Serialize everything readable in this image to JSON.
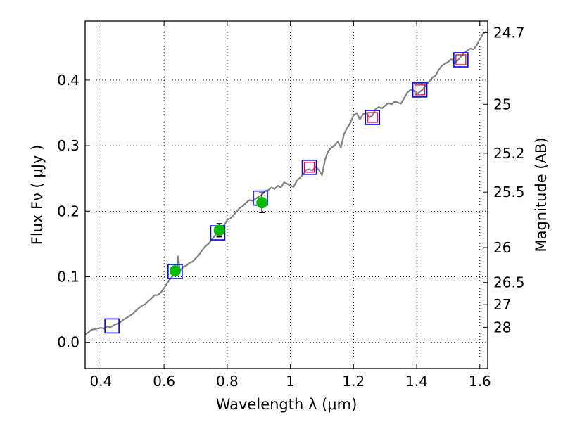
{
  "chart_data": {
    "type": "line",
    "xlabel": "Wavelength  λ (μm)",
    "ylabel": "Flux  Fν  ( μJy )",
    "y2label": "Magnitude (AB)",
    "xlim": [
      0.35,
      1.625
    ],
    "ylim": [
      -0.04,
      0.49
    ],
    "grid": true,
    "x_ticks": [
      0.4,
      0.6,
      0.8,
      1.0,
      1.2,
      1.4,
      1.6
    ],
    "x_tick_labels": [
      "0.4",
      "0.6",
      "0.8",
      "1",
      "1.2",
      "1.4",
      "1.6"
    ],
    "y_ticks": [
      0.0,
      0.1,
      0.2,
      0.3,
      0.4
    ],
    "y_tick_labels": [
      "0.0",
      "0.1",
      "0.2",
      "0.3",
      "0.4"
    ],
    "mag_ticks": [
      {
        "flux": 0.4723,
        "label": "24.7"
      },
      {
        "flux": 0.3631,
        "label": "25"
      },
      {
        "flux": 0.2884,
        "label": "25.2"
      },
      {
        "flux": 0.2291,
        "label": "25.5"
      },
      {
        "flux": 0.1445,
        "label": "26"
      },
      {
        "flux": 0.0912,
        "label": "26.5"
      },
      {
        "flux": 0.0575,
        "label": "27"
      },
      {
        "flux": 0.0229,
        "label": "28"
      }
    ],
    "model_spectrum": {
      "color": "#808080",
      "x": [
        0.35,
        0.36,
        0.37,
        0.38,
        0.39,
        0.4,
        0.41,
        0.42,
        0.43,
        0.44,
        0.45,
        0.46,
        0.47,
        0.48,
        0.49,
        0.5,
        0.51,
        0.52,
        0.53,
        0.54,
        0.55,
        0.56,
        0.57,
        0.58,
        0.59,
        0.6,
        0.61,
        0.62,
        0.63,
        0.64,
        0.645,
        0.65,
        0.66,
        0.67,
        0.68,
        0.69,
        0.7,
        0.71,
        0.72,
        0.73,
        0.74,
        0.75,
        0.76,
        0.77,
        0.78,
        0.79,
        0.8,
        0.81,
        0.82,
        0.83,
        0.84,
        0.85,
        0.86,
        0.87,
        0.88,
        0.89,
        0.9,
        0.91,
        0.92,
        0.93,
        0.94,
        0.95,
        0.96,
        0.97,
        0.98,
        0.99,
        1.0,
        1.01,
        1.02,
        1.03,
        1.04,
        1.05,
        1.06,
        1.07,
        1.08,
        1.09,
        1.1,
        1.11,
        1.12,
        1.13,
        1.14,
        1.15,
        1.16,
        1.17,
        1.18,
        1.19,
        1.2,
        1.21,
        1.22,
        1.23,
        1.24,
        1.25,
        1.26,
        1.27,
        1.28,
        1.29,
        1.3,
        1.31,
        1.32,
        1.33,
        1.34,
        1.35,
        1.36,
        1.37,
        1.38,
        1.39,
        1.4,
        1.41,
        1.42,
        1.43,
        1.44,
        1.45,
        1.46,
        1.47,
        1.48,
        1.49,
        1.5,
        1.51,
        1.52,
        1.53,
        1.54,
        1.55,
        1.56,
        1.57,
        1.58,
        1.59,
        1.6,
        1.61,
        1.62
      ],
      "y": [
        0.012,
        0.015,
        0.019,
        0.02,
        0.021,
        0.022,
        0.021,
        0.024,
        0.023,
        0.026,
        0.028,
        0.03,
        0.034,
        0.037,
        0.04,
        0.043,
        0.048,
        0.052,
        0.056,
        0.058,
        0.063,
        0.067,
        0.072,
        0.072,
        0.076,
        0.083,
        0.09,
        0.097,
        0.102,
        0.106,
        0.131,
        0.108,
        0.115,
        0.117,
        0.121,
        0.123,
        0.128,
        0.133,
        0.14,
        0.146,
        0.15,
        0.156,
        0.162,
        0.168,
        0.17,
        0.178,
        0.187,
        0.189,
        0.194,
        0.2,
        0.205,
        0.208,
        0.213,
        0.217,
        0.216,
        0.219,
        0.222,
        0.225,
        0.231,
        0.232,
        0.236,
        0.234,
        0.239,
        0.236,
        0.244,
        0.242,
        0.239,
        0.237,
        0.246,
        0.251,
        0.256,
        0.263,
        0.264,
        0.262,
        0.268,
        0.263,
        0.255,
        0.279,
        0.292,
        0.297,
        0.3,
        0.306,
        0.297,
        0.318,
        0.327,
        0.335,
        0.346,
        0.35,
        0.34,
        0.348,
        0.35,
        0.343,
        0.346,
        0.356,
        0.359,
        0.357,
        0.361,
        0.365,
        0.363,
        0.367,
        0.366,
        0.364,
        0.372,
        0.381,
        0.385,
        0.384,
        0.379,
        0.382,
        0.386,
        0.393,
        0.398,
        0.404,
        0.407,
        0.416,
        0.422,
        0.425,
        0.428,
        0.432,
        0.426,
        0.43,
        0.436,
        0.441,
        0.445,
        0.448,
        0.447,
        0.453,
        0.462,
        0.471,
        0.474
      ]
    },
    "series": [
      {
        "marker": "square-open",
        "color": "#0000ff",
        "x": [
          0.435,
          0.635,
          0.77,
          0.905,
          1.06,
          1.26,
          1.41,
          1.54
        ],
        "y": [
          0.025,
          0.108,
          0.167,
          0.22,
          0.267,
          0.343,
          0.385,
          0.431
        ]
      },
      {
        "marker": "square-open",
        "color": "#e8003f",
        "x": [
          1.06,
          1.26,
          1.41,
          1.54
        ],
        "y": [
          0.267,
          0.343,
          0.385,
          0.431
        ]
      },
      {
        "marker": "circle-filled-errorbar",
        "color": "#00bb00",
        "x": [
          0.635,
          0.775,
          0.91
        ],
        "y": [
          0.109,
          0.171,
          0.213
        ],
        "yerr": [
          0.007,
          0.01,
          0.015
        ]
      }
    ]
  }
}
